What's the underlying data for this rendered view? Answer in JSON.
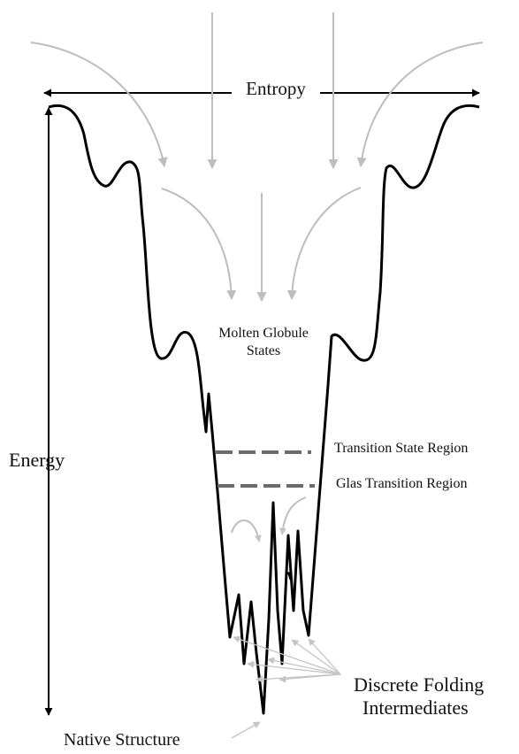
{
  "labels": {
    "entropy": "Entropy",
    "energy": "Energy",
    "molten_line1": "Molten Globule",
    "molten_line2": "States",
    "transition_state": "Transition State Region",
    "glass_transition": "Glas Transition Region",
    "discrete_line1": "Discrete Folding",
    "discrete_line2": "Intermediates",
    "native": "Native Structure"
  },
  "colors": {
    "curve": "#000000",
    "arrows": "#bdbdbd",
    "dashes": "#6b6b6b",
    "axis": "#000000"
  }
}
